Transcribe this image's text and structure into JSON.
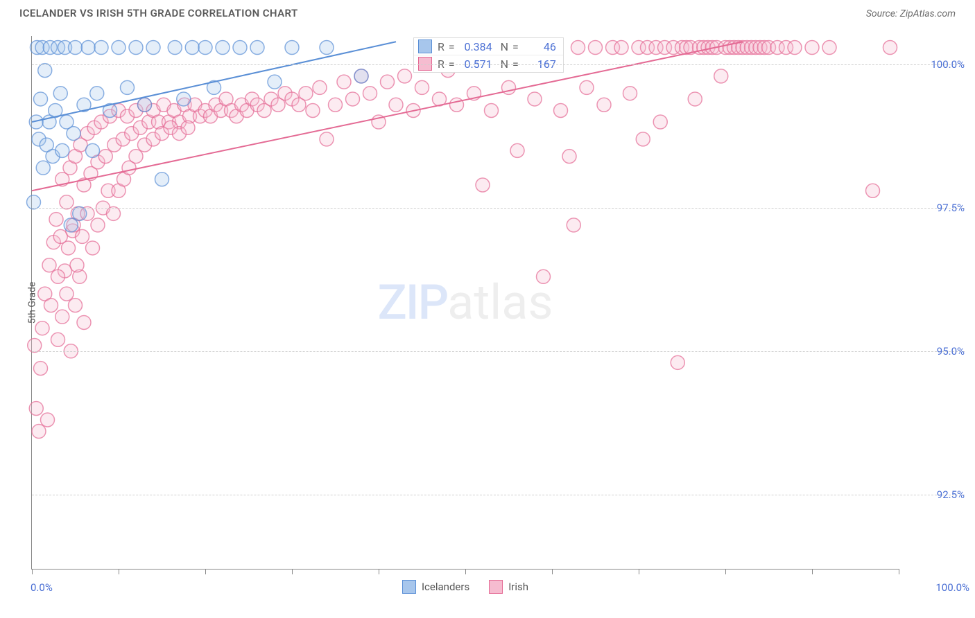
{
  "header": {
    "title": "ICELANDER VS IRISH 5TH GRADE CORRELATION CHART",
    "source": "Source: ZipAtlas.com"
  },
  "chart": {
    "type": "scatter",
    "yaxis_label": "5th Grade",
    "background_color": "#ffffff",
    "grid_color": "#cfcfcf",
    "axis_color": "#888888",
    "tick_label_color": "#4a6fd4",
    "axis_label_color": "#555555",
    "marker_radius": 10,
    "marker_fill_opacity": 0.3,
    "marker_stroke_width": 1.5,
    "trendline_width": 2,
    "xlim": [
      0,
      100
    ],
    "ylim": [
      91.2,
      100.5
    ],
    "x_end_labels": {
      "min": "0.0%",
      "max": "100.0%"
    },
    "x_tick_positions_pct": [
      0,
      10,
      20,
      30,
      40,
      50,
      60,
      70,
      80,
      90,
      100
    ],
    "y_ticks": [
      {
        "v": 92.5,
        "label": "92.5%"
      },
      {
        "v": 95.0,
        "label": "95.0%"
      },
      {
        "v": 97.5,
        "label": "97.5%"
      },
      {
        "v": 100.0,
        "label": "100.0%"
      }
    ],
    "watermark": {
      "bold": "ZIP",
      "light": "atlas"
    },
    "series": [
      {
        "name": "Icelanders",
        "color_stroke": "#5a8fd6",
        "color_fill": "#a7c6ec",
        "R": "0.384",
        "N": "46",
        "trendline": {
          "x1": 0,
          "y1": 99.0,
          "x2": 42,
          "y2": 100.4
        },
        "points": [
          [
            0.2,
            97.6
          ],
          [
            0.5,
            99.0
          ],
          [
            0.6,
            100.3
          ],
          [
            0.8,
            98.7
          ],
          [
            1.0,
            99.4
          ],
          [
            1.2,
            100.3
          ],
          [
            1.3,
            98.2
          ],
          [
            1.5,
            99.9
          ],
          [
            1.7,
            98.6
          ],
          [
            2.0,
            99.0
          ],
          [
            2.1,
            100.3
          ],
          [
            2.4,
            98.4
          ],
          [
            2.7,
            99.2
          ],
          [
            3.0,
            100.3
          ],
          [
            3.3,
            99.5
          ],
          [
            3.5,
            98.5
          ],
          [
            3.8,
            100.3
          ],
          [
            4.0,
            99.0
          ],
          [
            4.5,
            97.2
          ],
          [
            4.8,
            98.8
          ],
          [
            5.0,
            100.3
          ],
          [
            5.5,
            97.4
          ],
          [
            6.0,
            99.3
          ],
          [
            6.5,
            100.3
          ],
          [
            7.0,
            98.5
          ],
          [
            7.5,
            99.5
          ],
          [
            8.0,
            100.3
          ],
          [
            9.0,
            99.2
          ],
          [
            10.0,
            100.3
          ],
          [
            11.0,
            99.6
          ],
          [
            12.0,
            100.3
          ],
          [
            13.0,
            99.3
          ],
          [
            14.0,
            100.3
          ],
          [
            15.0,
            98.0
          ],
          [
            16.5,
            100.3
          ],
          [
            17.5,
            99.4
          ],
          [
            18.5,
            100.3
          ],
          [
            20.0,
            100.3
          ],
          [
            21.0,
            99.6
          ],
          [
            22.0,
            100.3
          ],
          [
            24.0,
            100.3
          ],
          [
            26.0,
            100.3
          ],
          [
            28.0,
            99.7
          ],
          [
            30.0,
            100.3
          ],
          [
            34.0,
            100.3
          ],
          [
            38.0,
            99.8
          ]
        ]
      },
      {
        "name": "Irish",
        "color_stroke": "#e46a94",
        "color_fill": "#f6bcd0",
        "R": "0.571",
        "N": "167",
        "trendline": {
          "x1": 0,
          "y1": 97.8,
          "x2": 82,
          "y2": 100.4
        },
        "points": [
          [
            0.3,
            95.1
          ],
          [
            0.5,
            94.0
          ],
          [
            0.8,
            93.6
          ],
          [
            1.0,
            94.7
          ],
          [
            1.2,
            95.4
          ],
          [
            1.5,
            96.0
          ],
          [
            1.8,
            93.8
          ],
          [
            2.0,
            96.5
          ],
          [
            2.2,
            95.8
          ],
          [
            2.5,
            96.9
          ],
          [
            2.8,
            97.3
          ],
          [
            3.0,
            95.2
          ],
          [
            3.3,
            97.0
          ],
          [
            3.5,
            98.0
          ],
          [
            3.8,
            96.4
          ],
          [
            4.0,
            97.6
          ],
          [
            4.4,
            98.2
          ],
          [
            4.7,
            97.1
          ],
          [
            5.0,
            98.4
          ],
          [
            5.3,
            97.4
          ],
          [
            5.6,
            98.6
          ],
          [
            6.0,
            97.9
          ],
          [
            6.4,
            98.8
          ],
          [
            6.8,
            98.1
          ],
          [
            7.2,
            98.9
          ],
          [
            7.6,
            98.3
          ],
          [
            8.0,
            99.0
          ],
          [
            8.5,
            98.4
          ],
          [
            9.0,
            99.1
          ],
          [
            9.5,
            98.6
          ],
          [
            10.0,
            99.2
          ],
          [
            10.5,
            98.7
          ],
          [
            11.0,
            99.1
          ],
          [
            11.5,
            98.8
          ],
          [
            12.0,
            99.2
          ],
          [
            12.5,
            98.9
          ],
          [
            13.0,
            99.3
          ],
          [
            13.5,
            99.0
          ],
          [
            14.0,
            99.2
          ],
          [
            14.6,
            99.0
          ],
          [
            15.2,
            99.3
          ],
          [
            15.8,
            99.0
          ],
          [
            16.4,
            99.2
          ],
          [
            17.0,
            99.0
          ],
          [
            17.6,
            99.3
          ],
          [
            18.2,
            99.1
          ],
          [
            18.8,
            99.3
          ],
          [
            19.4,
            99.1
          ],
          [
            20.0,
            99.2
          ],
          [
            20.6,
            99.1
          ],
          [
            21.2,
            99.3
          ],
          [
            21.8,
            99.2
          ],
          [
            22.4,
            99.4
          ],
          [
            23.0,
            99.2
          ],
          [
            23.6,
            99.1
          ],
          [
            24.2,
            99.3
          ],
          [
            24.8,
            99.2
          ],
          [
            25.4,
            99.4
          ],
          [
            26.0,
            99.3
          ],
          [
            26.8,
            99.2
          ],
          [
            27.6,
            99.4
          ],
          [
            28.4,
            99.3
          ],
          [
            29.2,
            99.5
          ],
          [
            30.0,
            99.4
          ],
          [
            30.8,
            99.3
          ],
          [
            31.6,
            99.5
          ],
          [
            32.4,
            99.2
          ],
          [
            33.2,
            99.6
          ],
          [
            34.0,
            98.7
          ],
          [
            35.0,
            99.3
          ],
          [
            36.0,
            99.7
          ],
          [
            37.0,
            99.4
          ],
          [
            38.0,
            99.8
          ],
          [
            39.0,
            99.5
          ],
          [
            40.0,
            99.0
          ],
          [
            41.0,
            99.7
          ],
          [
            42.0,
            99.3
          ],
          [
            43.0,
            99.8
          ],
          [
            44.0,
            99.2
          ],
          [
            45.0,
            99.6
          ],
          [
            46.0,
            100.3
          ],
          [
            47.0,
            99.4
          ],
          [
            48.0,
            99.9
          ],
          [
            49.0,
            99.3
          ],
          [
            50.0,
            100.3
          ],
          [
            51.0,
            99.5
          ],
          [
            52.0,
            97.9
          ],
          [
            53.0,
            99.2
          ],
          [
            54.0,
            100.3
          ],
          [
            55.0,
            99.6
          ],
          [
            56.0,
            98.5
          ],
          [
            57.0,
            100.3
          ],
          [
            58.0,
            99.4
          ],
          [
            59.0,
            96.3
          ],
          [
            60.0,
            100.3
          ],
          [
            61.0,
            99.2
          ],
          [
            62.0,
            98.4
          ],
          [
            62.5,
            97.2
          ],
          [
            63.0,
            100.3
          ],
          [
            64.0,
            99.6
          ],
          [
            65.0,
            100.3
          ],
          [
            66.0,
            99.3
          ],
          [
            67.0,
            100.3
          ],
          [
            68.0,
            100.3
          ],
          [
            69.0,
            99.5
          ],
          [
            70.0,
            100.3
          ],
          [
            70.5,
            98.7
          ],
          [
            71.0,
            100.3
          ],
          [
            72.0,
            100.3
          ],
          [
            72.5,
            99.0
          ],
          [
            73.0,
            100.3
          ],
          [
            74.0,
            100.3
          ],
          [
            74.5,
            94.8
          ],
          [
            75.0,
            100.3
          ],
          [
            75.5,
            100.3
          ],
          [
            76.0,
            100.3
          ],
          [
            76.5,
            99.4
          ],
          [
            77.0,
            100.3
          ],
          [
            77.5,
            100.3
          ],
          [
            78.0,
            100.3
          ],
          [
            78.5,
            100.3
          ],
          [
            79.0,
            100.3
          ],
          [
            79.5,
            99.8
          ],
          [
            80.0,
            100.3
          ],
          [
            80.5,
            100.3
          ],
          [
            81.0,
            100.3
          ],
          [
            81.5,
            100.3
          ],
          [
            82.0,
            100.3
          ],
          [
            82.5,
            100.3
          ],
          [
            83.0,
            100.3
          ],
          [
            83.5,
            100.3
          ],
          [
            84.0,
            100.3
          ],
          [
            84.5,
            100.3
          ],
          [
            85.0,
            100.3
          ],
          [
            86.0,
            100.3
          ],
          [
            87.0,
            100.3
          ],
          [
            88.0,
            100.3
          ],
          [
            90.0,
            100.3
          ],
          [
            92.0,
            100.3
          ],
          [
            97.0,
            97.8
          ],
          [
            99.0,
            100.3
          ],
          [
            3.0,
            96.3
          ],
          [
            3.5,
            95.6
          ],
          [
            4.0,
            96.0
          ],
          [
            4.5,
            95.0
          ],
          [
            5.0,
            95.8
          ],
          [
            5.5,
            96.3
          ],
          [
            6.0,
            95.5
          ],
          [
            4.2,
            96.8
          ],
          [
            4.8,
            97.2
          ],
          [
            5.2,
            96.5
          ],
          [
            5.8,
            97.0
          ],
          [
            6.4,
            97.4
          ],
          [
            7.0,
            96.8
          ],
          [
            7.6,
            97.2
          ],
          [
            8.2,
            97.5
          ],
          [
            8.8,
            97.8
          ],
          [
            9.4,
            97.4
          ],
          [
            10.0,
            97.8
          ],
          [
            10.6,
            98.0
          ],
          [
            11.2,
            98.2
          ],
          [
            12.0,
            98.4
          ],
          [
            13.0,
            98.6
          ],
          [
            14.0,
            98.7
          ],
          [
            15.0,
            98.8
          ],
          [
            16.0,
            98.9
          ],
          [
            17.0,
            98.8
          ],
          [
            18.0,
            98.9
          ]
        ]
      }
    ],
    "bottom_legend": [
      {
        "label": "Icelanders",
        "stroke": "#5a8fd6",
        "fill": "#a7c6ec"
      },
      {
        "label": "Irish",
        "stroke": "#e46a94",
        "fill": "#f6bcd0"
      }
    ]
  }
}
